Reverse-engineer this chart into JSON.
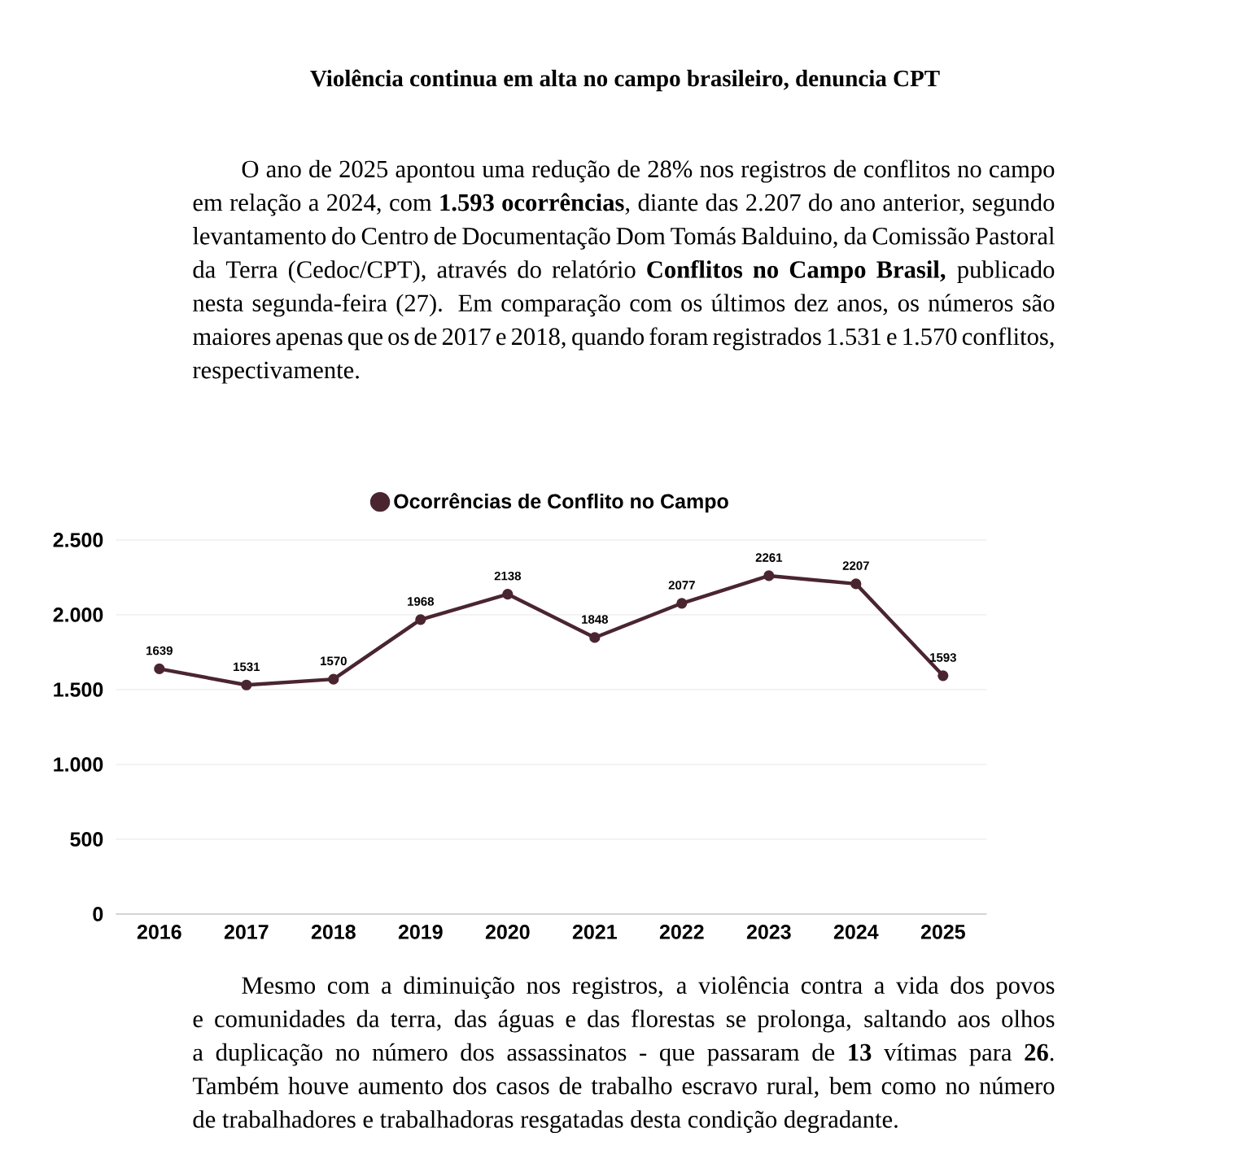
{
  "chart_data": {
    "type": "line",
    "title": "Violência continua em alta no campo brasileiro, denuncia CPT",
    "annotations": [
      "O ano de 2025 apontou uma redução de 28% nos registros de conflitos no campo em relação a 2024, com **1.593 ocorrências**, diante das 2.207 do ano anterior, segundo levantamento do Centro de Documentação Dom Tomás Balduino, da Comissão Pastoral da Terra (Cedoc/CPT), através do relatório **Conflitos no Campo Brasil,** publicado nesta segunda-feira (27). Em comparação com os últimos dez anos, os números são maiores apenas que os de 2017 e 2018, quando foram registrados 1.531 e 1.570 conflitos, respectivamente.",
      "Mesmo com a diminuição nos registros, a violência contra a vida dos povos e comunidades da terra, das águas e das florestas se prolonga, saltando aos olhos a duplicação no número dos assassinatos - que passaram de **13** vítimas para **26**. Também houve aumento dos casos de trabalho escravo rural, bem como no número de trabalhadores e trabalhadoras resgatadas desta condição degradante."
    ],
    "categories": [
      "2016",
      "2017",
      "2018",
      "2019",
      "2020",
      "2021",
      "2022",
      "2023",
      "2024",
      "2025"
    ],
    "series": [
      {
        "name": "Ocorrências de Conflito no Campo",
        "color": "#4a2530",
        "values": [
          1639,
          1531,
          1570,
          1968,
          2138,
          1848,
          2077,
          2261,
          2207,
          1593
        ]
      }
    ],
    "ylim": [
      0,
      2500
    ],
    "yticks": [
      0,
      500,
      {
        "value": 1000,
        "label": "1.000"
      },
      {
        "value": 1500,
        "label": "1.500"
      },
      {
        "value": 2000,
        "label": "2.000"
      },
      {
        "value": 2500,
        "label": "2.500"
      }
    ],
    "grid": "y",
    "legend": "top",
    "marker": "circle",
    "data_labels": true
  }
}
